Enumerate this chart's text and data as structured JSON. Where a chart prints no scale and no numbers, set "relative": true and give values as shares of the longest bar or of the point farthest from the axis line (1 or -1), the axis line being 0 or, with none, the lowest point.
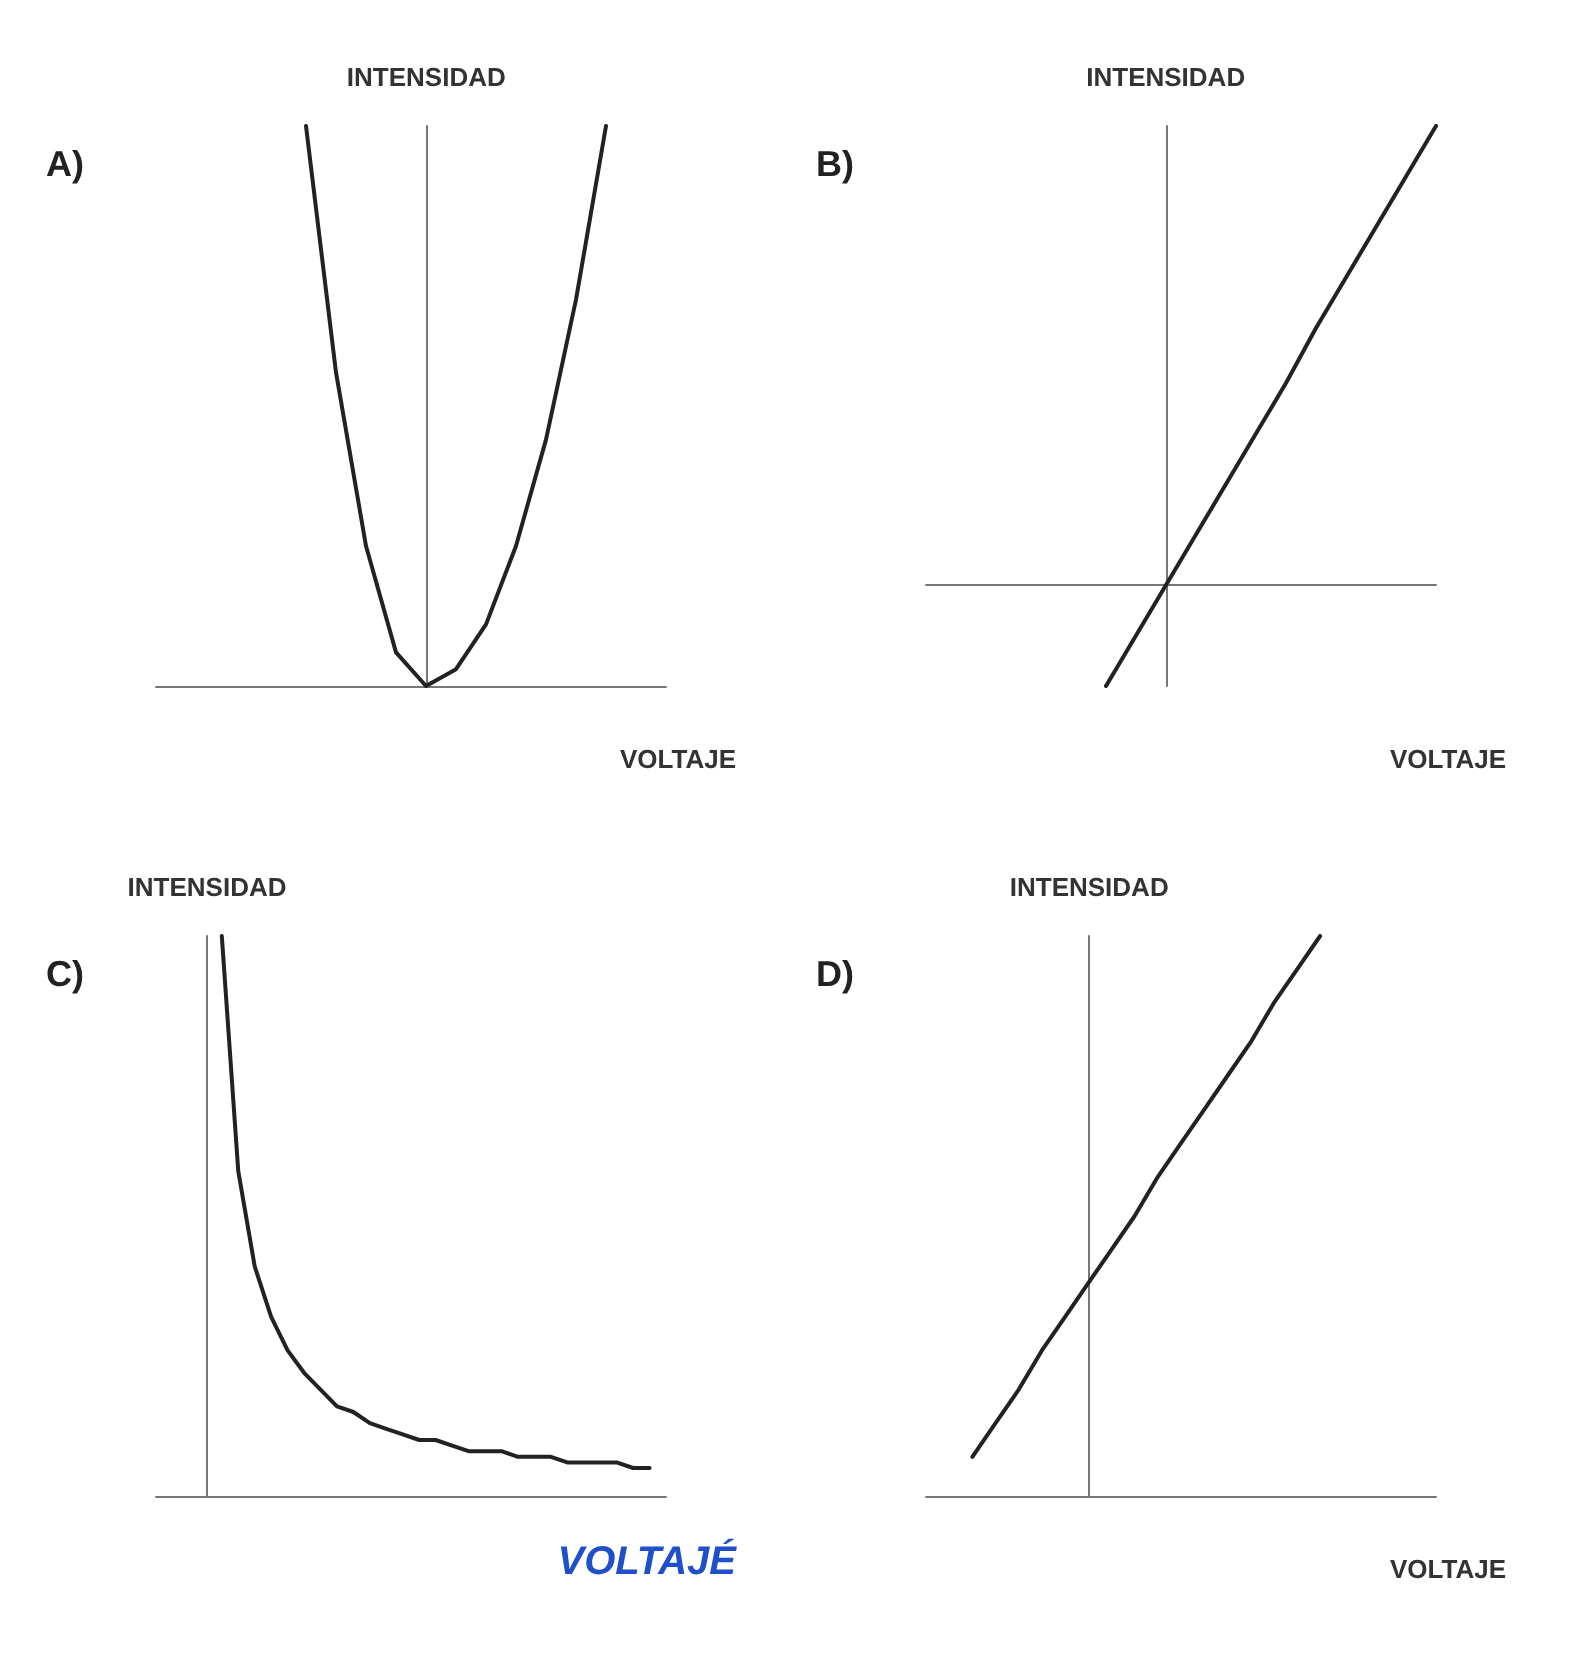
{
  "chart_data": [
    {
      "type": "line",
      "title": "A)",
      "xlabel": "VOLTAJE",
      "ylabel": "INTENSIDAD",
      "relative": true,
      "marker": "none",
      "categories": [
        null,
        null,
        null,
        null,
        null,
        null,
        null,
        null,
        null,
        null,
        null,
        null,
        null,
        null,
        null,
        null,
        null,
        null
      ],
      "series": [
        {
          "color": "#222222",
          "values": [
            null,
            null,
            null,
            null,
            null,
            1,
            0.56,
            0.25,
            0.06,
            0,
            0.03,
            0.11,
            0.25,
            0.44,
            0.69,
            1,
            null,
            null
          ]
        }
      ]
    },
    {
      "type": "line",
      "title": "B)",
      "xlabel": "VOLTAJE",
      "ylabel": "INTENSIDAD",
      "relative": true,
      "marker": "none",
      "categories": [
        null,
        null,
        null,
        null,
        null,
        null,
        null,
        null,
        null,
        null,
        null,
        null,
        null,
        null,
        null,
        null,
        null,
        null
      ],
      "series": [
        {
          "color": "#222222",
          "values": [
            null,
            null,
            null,
            null,
            null,
            null,
            -0.22,
            -0.11,
            0,
            0.11,
            0.22,
            0.33,
            0.44,
            0.56,
            0.67,
            0.78,
            0.89,
            1
          ]
        }
      ]
    },
    {
      "type": "line",
      "title": "C)",
      "xlabel": "VOLTAJÉ",
      "ylabel": "INTENSIDAD",
      "relative": true,
      "marker": "none",
      "categories": [
        null,
        null,
        null,
        null,
        null,
        null,
        null,
        null,
        null,
        null,
        null,
        null,
        null,
        null,
        null,
        null,
        null,
        null,
        null,
        null,
        null,
        null,
        null,
        null,
        null,
        null,
        null,
        null,
        null,
        null,
        null,
        null
      ],
      "series": [
        {
          "color": "#222222",
          "values": [
            null,
            null,
            null,
            null,
            1,
            0.58,
            0.41,
            0.32,
            0.26,
            0.22,
            0.19,
            0.16,
            0.15,
            0.13,
            0.12,
            0.11,
            0.1,
            0.1,
            0.09,
            0.08,
            0.08,
            0.08,
            0.07,
            0.07,
            0.07,
            0.06,
            0.06,
            0.06,
            0.06,
            0.05,
            0.05,
            null
          ]
        }
      ]
    },
    {
      "type": "line",
      "title": "D)",
      "xlabel": "VOLTAJE",
      "ylabel": "INTENSIDAD",
      "relative": true,
      "marker": "none",
      "categories": [
        null,
        null,
        null,
        null,
        null,
        null,
        null,
        null,
        null,
        null,
        null,
        null,
        null,
        null,
        null,
        null,
        null,
        null,
        null,
        null,
        null,
        null,
        null
      ],
      "series": [
        {
          "color": "#222222",
          "values": [
            null,
            null,
            0.07,
            0.13,
            0.19,
            0.26,
            0.32,
            0.38,
            0.44,
            0.5,
            0.57,
            0.63,
            0.69,
            0.75,
            0.81,
            0.88,
            0.94,
            1,
            null,
            null,
            null,
            null,
            null
          ]
        }
      ]
    }
  ]
}
